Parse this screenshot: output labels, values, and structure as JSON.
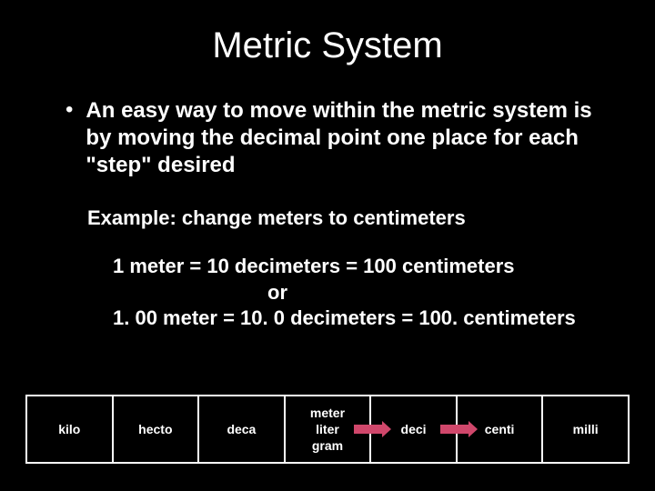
{
  "title": "Metric System",
  "bullet": "An easy way to move within the metric system is by moving the decimal point one place for each \"step\" desired",
  "example": "Example: change meters to centimeters",
  "conv1": "1 meter =  10 decimeters = 100 centimeters",
  "or": "or",
  "conv2": "1. 00 meter = 10. 0 decimeters = 100. centimeters",
  "prefixes": {
    "c0": "kilo",
    "c1": "hecto",
    "c2": "deca",
    "c3a": "meter",
    "c3b": "liter",
    "c3c": "gram",
    "c4": "deci",
    "c5": "centi",
    "c6": "milli"
  },
  "colors": {
    "background": "#000000",
    "text": "#ffffff",
    "border": "#ffffff",
    "arrow": "#d0476b"
  }
}
